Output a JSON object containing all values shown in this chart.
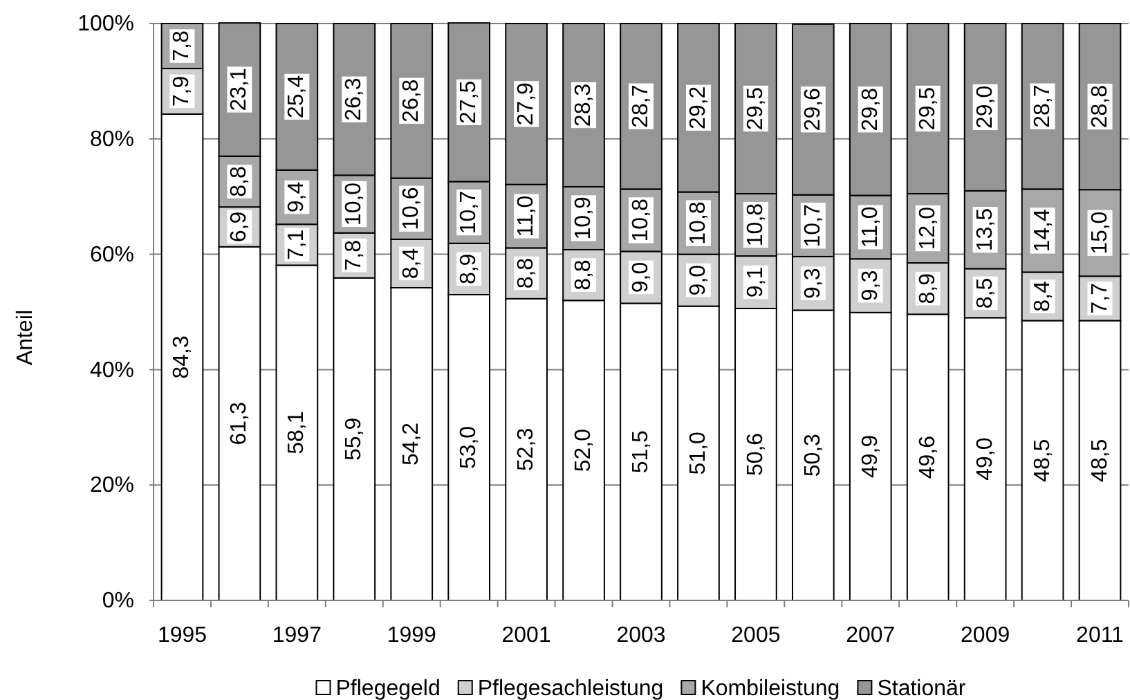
{
  "chart_data": {
    "type": "bar",
    "stacked": true,
    "ylabel": "Anteil",
    "categories": [
      "1995",
      null,
      "1997",
      null,
      "1999",
      null,
      "2001",
      null,
      "2003",
      null,
      "2005",
      null,
      "2007",
      null,
      "2009",
      null,
      "2011"
    ],
    "ylim": [
      0,
      100
    ],
    "yticks": [
      {
        "value": 0,
        "label": "0%"
      },
      {
        "value": 20,
        "label": "20%"
      },
      {
        "value": 40,
        "label": "40%"
      },
      {
        "value": 60,
        "label": "60%"
      },
      {
        "value": 80,
        "label": "80%"
      },
      {
        "value": 100,
        "label": "100%"
      }
    ],
    "grid": "y",
    "legend": "bottom",
    "series": [
      {
        "name": "Pflegegeld",
        "color": "#ffffff",
        "values": [
          84.3,
          61.3,
          58.1,
          55.9,
          54.2,
          53.0,
          52.3,
          52.0,
          51.5,
          51.0,
          50.6,
          50.3,
          49.9,
          49.6,
          49.0,
          48.5,
          48.5
        ],
        "value_labels": [
          "84,3",
          "61,3",
          "58,1",
          "55,9",
          "54,2",
          "53,0",
          "52,3",
          "52,0",
          "51,5",
          "51,0",
          "50,6",
          "50,3",
          "49,9",
          "49,6",
          "49,0",
          "48,5",
          "48,5"
        ]
      },
      {
        "name": "Pflegesachleistung",
        "color": "#d0d0d0",
        "values": [
          7.9,
          6.9,
          7.1,
          7.8,
          8.4,
          8.9,
          8.8,
          8.8,
          9.0,
          9.0,
          9.1,
          9.3,
          9.3,
          8.9,
          8.5,
          8.4,
          7.7
        ],
        "value_labels": [
          "7,9",
          "6,9",
          "7,1",
          "7,8",
          "8,4",
          "8,9",
          "8,8",
          "8,8",
          "9,0",
          "9,0",
          "9,1",
          "9,3",
          "9,3",
          "8,9",
          "8,5",
          "8,4",
          "7,7"
        ]
      },
      {
        "name": "Kombileistung",
        "color": "#a8a8a8",
        "values": [
          7.8,
          8.8,
          9.4,
          10.0,
          10.6,
          10.7,
          11.0,
          10.9,
          10.8,
          10.8,
          10.8,
          10.7,
          11.0,
          12.0,
          13.5,
          14.4,
          15.0
        ],
        "value_labels": [
          "7,8",
          "8,8",
          "9,4",
          "10,0",
          "10,6",
          "10,7",
          "11,0",
          "10,9",
          "10,8",
          "10,8",
          "10,8",
          "10,7",
          "11,0",
          "12,0",
          "13,5",
          "14,4",
          "15,0"
        ]
      },
      {
        "name": "Stationär",
        "color": "#969696",
        "values": [
          null,
          23.1,
          25.4,
          26.3,
          26.8,
          27.5,
          27.9,
          28.3,
          28.7,
          29.2,
          29.5,
          29.6,
          29.8,
          29.5,
          29.0,
          28.7,
          28.8
        ],
        "value_labels": [
          null,
          "23,1",
          "25,4",
          "26,3",
          "26,8",
          "27,5",
          "27,9",
          "28,3",
          "28,7",
          "29,2",
          "29,5",
          "29,6",
          "29,8",
          "29,5",
          "29,0",
          "28,7",
          "28,8"
        ]
      }
    ]
  }
}
